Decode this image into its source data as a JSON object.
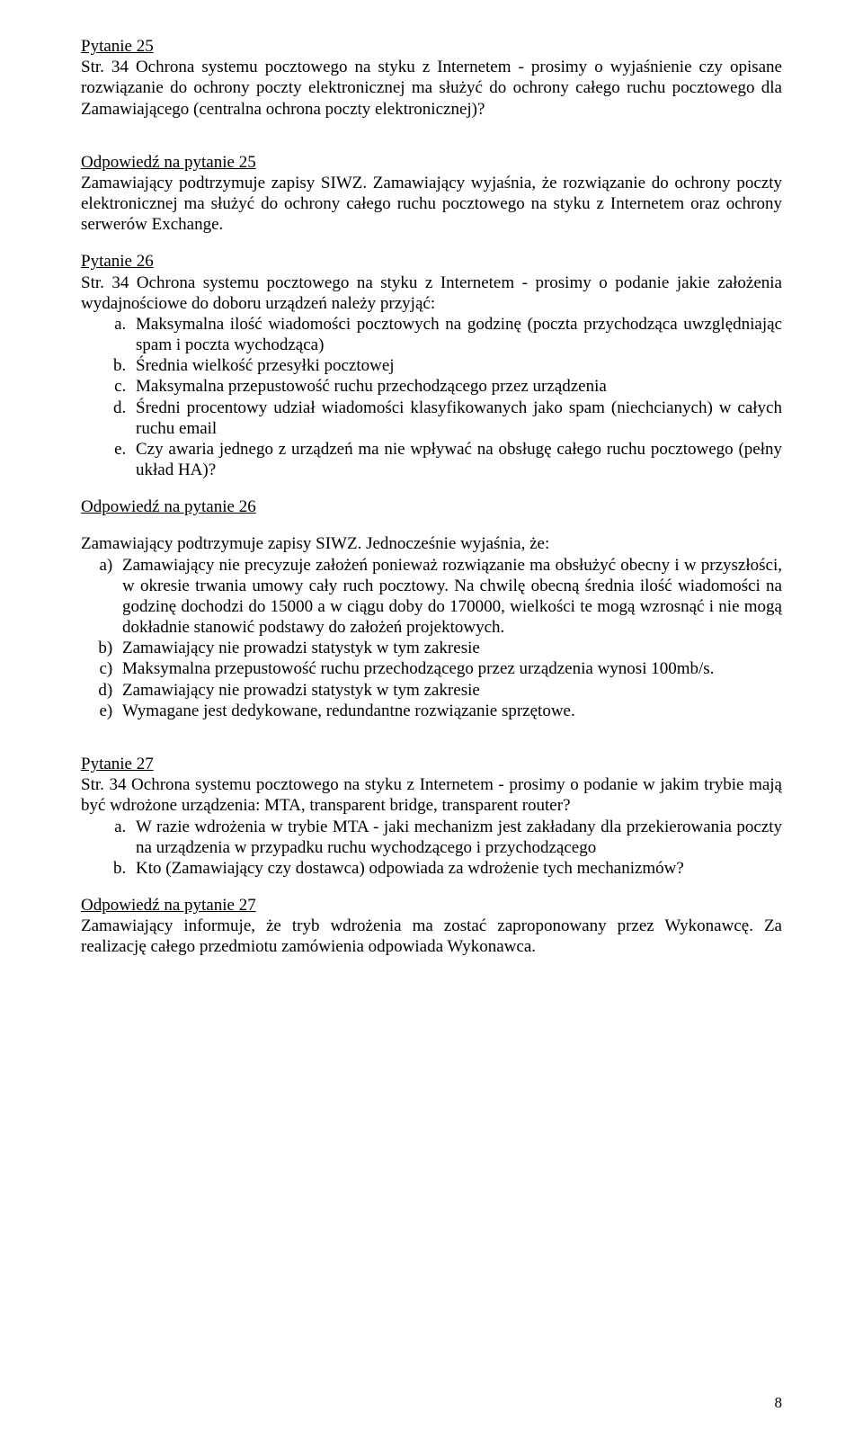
{
  "p25": {
    "heading": "Pytanie 25",
    "body": "Str. 34 Ochrona systemu pocztowego na styku z Internetem - prosimy o wyjaśnienie czy opisane rozwiązanie do ochrony poczty elektronicznej ma służyć do ochrony całego ruchu pocztowego dla Zamawiającego (centralna ochrona poczty elektronicznej)?",
    "answer_heading": "Odpowiedź na pytanie 25",
    "answer_body": "Zamawiający podtrzymuje zapisy SIWZ. Zamawiający wyjaśnia, że rozwiązanie do ochrony poczty elektronicznej ma służyć do ochrony całego ruchu pocztowego na styku z Internetem oraz ochrony serwerów Exchange."
  },
  "p26": {
    "heading": "Pytanie 26",
    "body": "Str. 34 Ochrona systemu pocztowego na styku z Internetem - prosimy o podanie jakie założenia wydajnościowe do doboru urządzeń należy przyjąć:",
    "items": [
      "Maksymalna ilość wiadomości pocztowych na godzinę (poczta przychodząca uwzględniając spam i poczta wychodząca)",
      "Średnia wielkość przesyłki pocztowej",
      "Maksymalna przepustowość ruchu przechodzącego przez urządzenia",
      "Średni procentowy udział wiadomości klasyfikowanych jako spam (niechcianych) w całych ruchu email",
      "Czy awaria jednego z urządzeń ma nie wpływać na obsługę całego ruchu pocztowego (pełny układ HA)?"
    ],
    "answer_heading": "Odpowiedź na pytanie 26",
    "answer_lead": "Zamawiający podtrzymuje zapisy SIWZ. Jednocześnie wyjaśnia, że:",
    "answer_items": [
      "Zamawiający nie precyzuje założeń ponieważ rozwiązanie ma obsłużyć obecny i w przyszłości, w okresie trwania umowy cały ruch pocztowy. Na chwilę obecną średnia ilość wiadomości na godzinę dochodzi do 15000 a w ciągu doby do 170000, wielkości te mogą wzrosnąć i nie mogą dokładnie stanowić podstawy do założeń projektowych.",
      "Zamawiający nie prowadzi statystyk w tym zakresie",
      "Maksymalna przepustowość ruchu przechodzącego przez urządzenia wynosi 100mb/s.",
      "Zamawiający nie prowadzi statystyk w tym zakresie",
      "Wymagane jest dedykowane, redundantne rozwiązanie sprzętowe."
    ]
  },
  "p27": {
    "heading": "Pytanie 27",
    "body": "Str. 34 Ochrona systemu pocztowego na styku z Internetem - prosimy o podanie w jakim trybie mają być wdrożone urządzenia: MTA, transparent bridge, transparent router?",
    "items": [
      "W razie wdrożenia w trybie MTA - jaki mechanizm jest zakładany dla przekierowania poczty na urządzenia w przypadku ruchu wychodzącego i przychodzącego",
      "Kto (Zamawiający czy dostawca) odpowiada za wdrożenie tych mechanizmów?"
    ],
    "answer_heading": "Odpowiedź na pytanie 27",
    "answer_body": "Zamawiający informuje, że tryb wdrożenia ma zostać zaproponowany przez Wykonawcę. Za realizację całego przedmiotu zamówienia odpowiada Wykonawca."
  },
  "page_number": "8"
}
